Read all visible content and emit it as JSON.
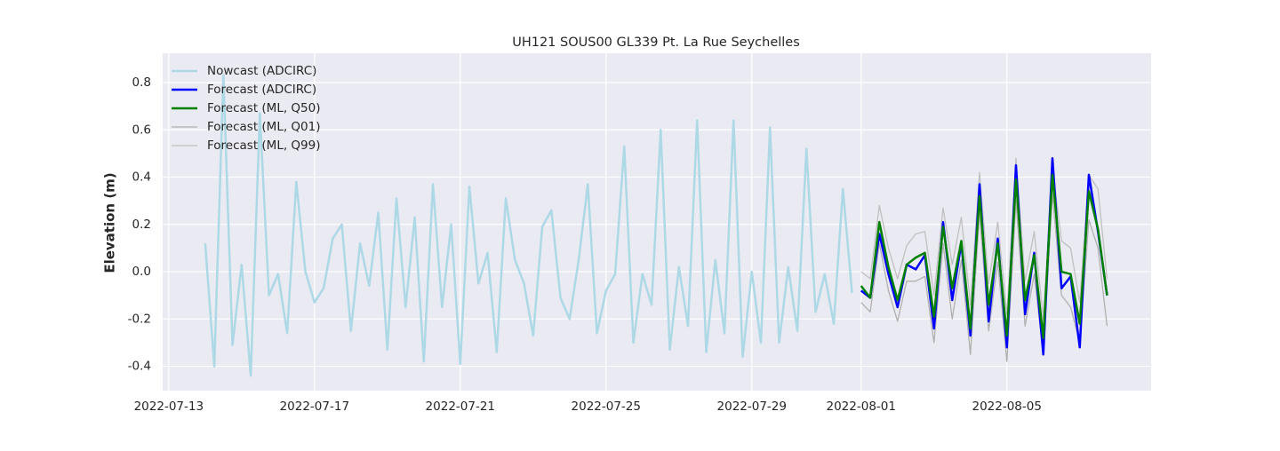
{
  "chart_data": {
    "type": "line",
    "title": "UH121 SOUS00 GL339 Pt. La Rue Seychelles",
    "y_label": "Elevation (m)",
    "xlim": [
      "2022-07-12 20:00",
      "2022-08-08 23:00"
    ],
    "ylim": [
      -0.503,
      0.924
    ],
    "xticks": [
      "2022-07-13",
      "2022-07-17",
      "2022-07-21",
      "2022-07-25",
      "2022-07-29",
      "2022-08-01",
      "2022-08-05"
    ],
    "yticks": [
      -0.4,
      -0.2,
      {
        "value": 0,
        "label": "0.0"
      },
      0.2,
      0.4,
      0.6,
      0.8
    ],
    "grid": true,
    "legend": "upper left",
    "series": [
      {
        "name": "Nowcast (ADCIRC)",
        "color": "#add8e6",
        "width": 2.5,
        "x": [
          "2022-07-14 00:00",
          "2022-07-14 06:00",
          "2022-07-14 12:00",
          "2022-07-14 18:00",
          "2022-07-15 00:00",
          "2022-07-15 06:00",
          "2022-07-15 12:00",
          "2022-07-15 18:00",
          "2022-07-16 00:00",
          "2022-07-16 06:00",
          "2022-07-16 12:00",
          "2022-07-16 18:00",
          "2022-07-17 00:00",
          "2022-07-17 06:00",
          "2022-07-17 12:00",
          "2022-07-17 18:00",
          "2022-07-18 00:00",
          "2022-07-18 06:00",
          "2022-07-18 12:00",
          "2022-07-18 18:00",
          "2022-07-19 00:00",
          "2022-07-19 06:00",
          "2022-07-19 12:00",
          "2022-07-19 18:00",
          "2022-07-20 00:00",
          "2022-07-20 06:00",
          "2022-07-20 12:00",
          "2022-07-20 18:00",
          "2022-07-21 00:00",
          "2022-07-21 06:00",
          "2022-07-21 12:00",
          "2022-07-21 18:00",
          "2022-07-22 00:00",
          "2022-07-22 06:00",
          "2022-07-22 12:00",
          "2022-07-22 18:00",
          "2022-07-23 00:00",
          "2022-07-23 06:00",
          "2022-07-23 12:00",
          "2022-07-23 18:00",
          "2022-07-24 00:00",
          "2022-07-24 06:00",
          "2022-07-24 12:00",
          "2022-07-24 18:00",
          "2022-07-25 00:00",
          "2022-07-25 06:00",
          "2022-07-25 12:00",
          "2022-07-25 18:00",
          "2022-07-26 00:00",
          "2022-07-26 06:00",
          "2022-07-26 12:00",
          "2022-07-26 18:00",
          "2022-07-27 00:00",
          "2022-07-27 06:00",
          "2022-07-27 12:00",
          "2022-07-27 18:00",
          "2022-07-28 00:00",
          "2022-07-28 06:00",
          "2022-07-28 12:00",
          "2022-07-28 18:00",
          "2022-07-29 00:00",
          "2022-07-29 06:00",
          "2022-07-29 12:00",
          "2022-07-29 18:00",
          "2022-07-30 00:00",
          "2022-07-30 06:00",
          "2022-07-30 12:00",
          "2022-07-30 18:00",
          "2022-07-31 00:00",
          "2022-07-31 06:00",
          "2022-07-31 12:00",
          "2022-07-31 18:00"
        ],
        "values": [
          0.12,
          -0.4,
          0.83,
          -0.31,
          0.03,
          -0.44,
          0.67,
          -0.1,
          -0.01,
          -0.26,
          0.38,
          0.0,
          -0.13,
          -0.07,
          0.14,
          0.2,
          -0.25,
          0.12,
          -0.06,
          0.25,
          -0.33,
          0.31,
          -0.15,
          0.23,
          -0.38,
          0.37,
          -0.15,
          0.2,
          -0.39,
          0.36,
          -0.05,
          0.08,
          -0.34,
          0.31,
          0.05,
          -0.05,
          -0.27,
          0.19,
          0.26,
          -0.11,
          -0.2,
          0.05,
          0.37,
          -0.26,
          -0.08,
          -0.01,
          0.53,
          -0.3,
          -0.01,
          -0.14,
          0.6,
          -0.33,
          0.02,
          -0.23,
          0.64,
          -0.34,
          0.05,
          -0.26,
          0.64,
          -0.36,
          0.0,
          -0.3,
          0.61,
          -0.3,
          0.02,
          -0.25,
          0.52,
          -0.17,
          -0.01,
          -0.22,
          0.35,
          -0.09
        ]
      },
      {
        "name": "Forecast (ADCIRC)",
        "color": "#0000ff",
        "width": 2.5,
        "x": [
          "2022-08-01 00:00",
          "2022-08-01 06:00",
          "2022-08-01 12:00",
          "2022-08-01 18:00",
          "2022-08-02 00:00",
          "2022-08-02 06:00",
          "2022-08-02 12:00",
          "2022-08-02 18:00",
          "2022-08-03 00:00",
          "2022-08-03 06:00",
          "2022-08-03 12:00",
          "2022-08-03 18:00",
          "2022-08-04 00:00",
          "2022-08-04 06:00",
          "2022-08-04 12:00",
          "2022-08-04 18:00",
          "2022-08-05 00:00",
          "2022-08-05 06:00",
          "2022-08-05 12:00",
          "2022-08-05 18:00",
          "2022-08-06 00:00",
          "2022-08-06 06:00",
          "2022-08-06 12:00",
          "2022-08-06 18:00",
          "2022-08-07 00:00",
          "2022-08-07 06:00",
          "2022-08-07 12:00",
          "2022-08-07 18:00"
        ],
        "values": [
          -0.08,
          -0.11,
          0.16,
          -0.01,
          -0.15,
          0.03,
          0.01,
          0.07,
          -0.24,
          0.21,
          -0.12,
          0.12,
          -0.27,
          0.37,
          -0.21,
          0.14,
          -0.32,
          0.45,
          -0.18,
          0.08,
          -0.35,
          0.48,
          -0.07,
          -0.02,
          -0.32,
          0.41,
          0.17,
          -0.1
        ]
      },
      {
        "name": "Forecast (ML, Q50)",
        "color": "#008000",
        "width": 2.5,
        "x": [
          "2022-08-01 00:00",
          "2022-08-01 06:00",
          "2022-08-01 12:00",
          "2022-08-01 18:00",
          "2022-08-02 00:00",
          "2022-08-02 06:00",
          "2022-08-02 12:00",
          "2022-08-02 18:00",
          "2022-08-03 00:00",
          "2022-08-03 06:00",
          "2022-08-03 12:00",
          "2022-08-03 18:00",
          "2022-08-04 00:00",
          "2022-08-04 06:00",
          "2022-08-04 12:00",
          "2022-08-04 18:00",
          "2022-08-05 00:00",
          "2022-08-05 06:00",
          "2022-08-05 12:00",
          "2022-08-05 18:00",
          "2022-08-06 00:00",
          "2022-08-06 06:00",
          "2022-08-06 12:00",
          "2022-08-06 18:00",
          "2022-08-07 00:00",
          "2022-08-07 06:00",
          "2022-08-07 12:00",
          "2022-08-07 18:00"
        ],
        "values": [
          -0.06,
          -0.11,
          0.21,
          0.02,
          -0.12,
          0.03,
          0.06,
          0.08,
          -0.19,
          0.19,
          -0.07,
          0.13,
          -0.24,
          0.32,
          -0.14,
          0.12,
          -0.27,
          0.39,
          -0.12,
          0.07,
          -0.28,
          0.41,
          0.0,
          -0.01,
          -0.22,
          0.34,
          0.18,
          -0.1
        ]
      },
      {
        "name": "Forecast (ML, Q01)",
        "color": "#b0b0b0",
        "width": 1.3,
        "x": [
          "2022-08-01 00:00",
          "2022-08-01 06:00",
          "2022-08-01 12:00",
          "2022-08-01 18:00",
          "2022-08-02 00:00",
          "2022-08-02 06:00",
          "2022-08-02 12:00",
          "2022-08-02 18:00",
          "2022-08-03 00:00",
          "2022-08-03 06:00",
          "2022-08-03 12:00",
          "2022-08-03 18:00",
          "2022-08-04 00:00",
          "2022-08-04 06:00",
          "2022-08-04 12:00",
          "2022-08-04 18:00",
          "2022-08-05 00:00",
          "2022-08-05 06:00",
          "2022-08-05 12:00",
          "2022-08-05 18:00",
          "2022-08-06 00:00",
          "2022-08-06 06:00",
          "2022-08-06 12:00",
          "2022-08-06 18:00",
          "2022-08-07 00:00",
          "2022-08-07 06:00",
          "2022-08-07 12:00",
          "2022-08-07 18:00"
        ],
        "values": [
          -0.13,
          -0.17,
          0.12,
          -0.08,
          -0.21,
          -0.04,
          -0.04,
          -0.02,
          -0.3,
          0.12,
          -0.2,
          0.05,
          -0.35,
          0.25,
          -0.25,
          0.04,
          -0.38,
          0.3,
          -0.23,
          -0.01,
          -0.35,
          0.33,
          -0.1,
          -0.15,
          -0.3,
          0.22,
          0.1,
          -0.23
        ]
      },
      {
        "name": "Forecast (ML, Q99)",
        "color": "#c0c0c0",
        "width": 1.3,
        "x": [
          "2022-08-01 00:00",
          "2022-08-01 06:00",
          "2022-08-01 12:00",
          "2022-08-01 18:00",
          "2022-08-02 00:00",
          "2022-08-02 06:00",
          "2022-08-02 12:00",
          "2022-08-02 18:00",
          "2022-08-03 00:00",
          "2022-08-03 06:00",
          "2022-08-03 12:00",
          "2022-08-03 18:00",
          "2022-08-04 00:00",
          "2022-08-04 06:00",
          "2022-08-04 12:00",
          "2022-08-04 18:00",
          "2022-08-05 00:00",
          "2022-08-05 06:00",
          "2022-08-05 12:00",
          "2022-08-05 18:00",
          "2022-08-06 00:00",
          "2022-08-06 06:00",
          "2022-08-06 12:00",
          "2022-08-06 18:00",
          "2022-08-07 00:00",
          "2022-08-07 06:00",
          "2022-08-07 12:00",
          "2022-08-07 18:00"
        ],
        "values": [
          0.0,
          -0.03,
          0.28,
          0.1,
          -0.03,
          0.11,
          0.16,
          0.17,
          -0.1,
          0.27,
          0.03,
          0.23,
          -0.14,
          0.42,
          -0.05,
          0.21,
          -0.18,
          0.48,
          -0.04,
          0.17,
          -0.2,
          0.44,
          0.13,
          0.1,
          -0.13,
          0.41,
          0.35,
          -0.03
        ]
      }
    ]
  }
}
